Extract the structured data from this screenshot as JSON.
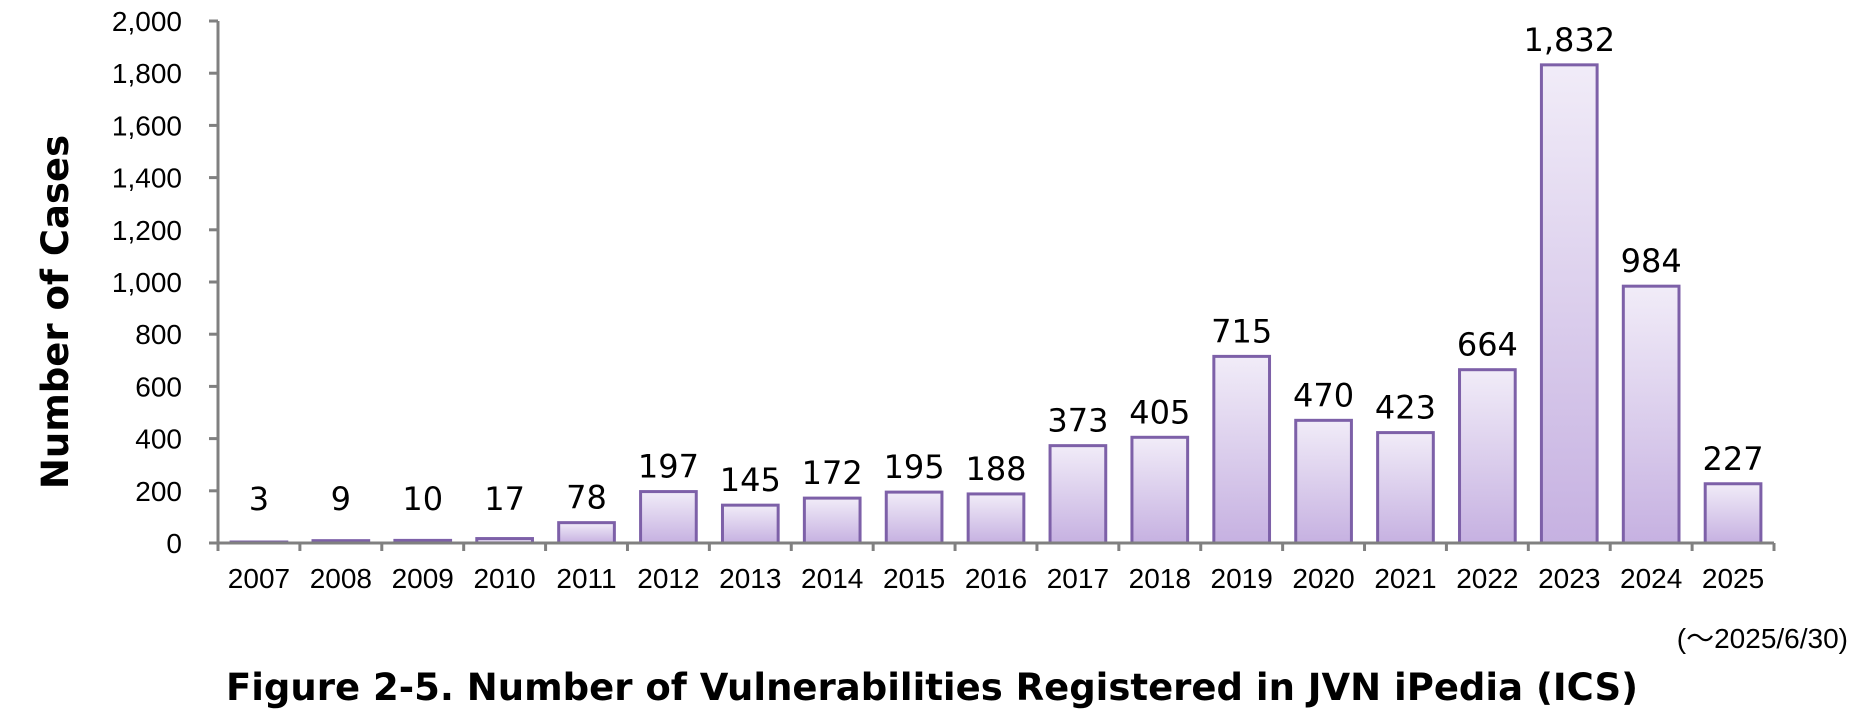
{
  "chart_data": {
    "type": "bar",
    "categories": [
      "2007",
      "2008",
      "2009",
      "2010",
      "2011",
      "2012",
      "2013",
      "2014",
      "2015",
      "2016",
      "2017",
      "2018",
      "2019",
      "2020",
      "2021",
      "2022",
      "2023",
      "2024",
      "2025"
    ],
    "values": [
      3,
      9,
      10,
      17,
      78,
      197,
      145,
      172,
      195,
      188,
      373,
      405,
      715,
      470,
      423,
      664,
      1832,
      984,
      227
    ],
    "data_labels": [
      "3",
      "9",
      "10",
      "17",
      "78",
      "197",
      "145",
      "172",
      "195",
      "188",
      "373",
      "405",
      "715",
      "470",
      "423",
      "664",
      "1,832",
      "984",
      "227"
    ],
    "title": "",
    "xlabel": "",
    "ylabel": "Number of Cases",
    "ylim": [
      0,
      2000
    ],
    "yticks": [
      "0",
      "200",
      "400",
      "600",
      "800",
      "1,000",
      "1,200",
      "1,400",
      "1,600",
      "1,800",
      "2,000"
    ],
    "note": "(～2025/6/30)",
    "grid": false,
    "colors": {
      "bar_top": "#f1ecf8",
      "bar_bottom": "#c6b1e1",
      "bar_border": "#7d60a8",
      "axis": "#808080"
    }
  },
  "caption": "Figure 2-5. Number of Vulnerabilities Registered in JVN iPedia (ICS)"
}
